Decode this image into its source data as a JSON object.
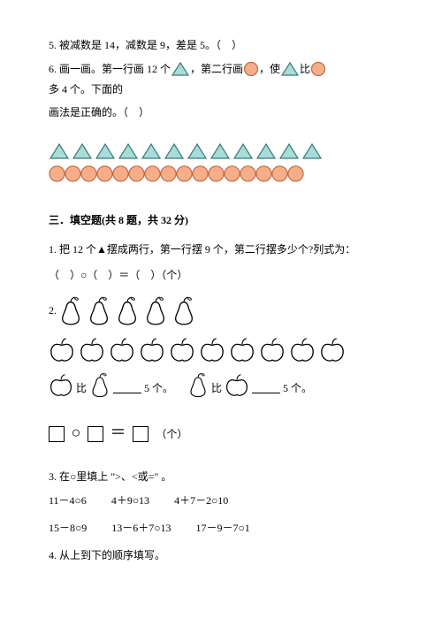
{
  "q5": "5. 被减数是 14，减数是 9，差是 5。（　）",
  "q6a": "6. 画一画。第一行画 12 个",
  "q6b": "，第二行画",
  "q6c": "，使",
  "q6d": "比",
  "q6e": "多 4 个。下面的",
  "q6f": "画法是正确的。（　）",
  "icon_colors": {
    "triangle_fill": "#a7dcd9",
    "triangle_stroke": "#3a7c7a",
    "circle_fill": "#f4af8a",
    "circle_stroke": "#c26a3f"
  },
  "triangle_count": 12,
  "circle_count_row": 16,
  "section3_title": "三．填空题(共 8 题，共 32 分)",
  "q3_1": "1. 把 12 个▲摆成两行，第一行摆 9 个，第二行摆多少个?列式为：",
  "q3_1_eq": "（　）○（　）＝（　）（个）",
  "q3_2_label": "2.",
  "pear_count": 5,
  "apple_count": 10,
  "comp_a": "比",
  "comp_b": "5 个。",
  "eq_tail": "（个）",
  "q3_3": "3. 在○里填上 \">、<或=\" 。",
  "q3_3_row1": [
    "11－4○6",
    "4＋9○13",
    "4＋7－2○10"
  ],
  "q3_3_row2": [
    "15－8○9",
    "13－6＋7○13",
    "17－9－7○1"
  ],
  "q3_4": "4. 从上到下的顺序填写。"
}
